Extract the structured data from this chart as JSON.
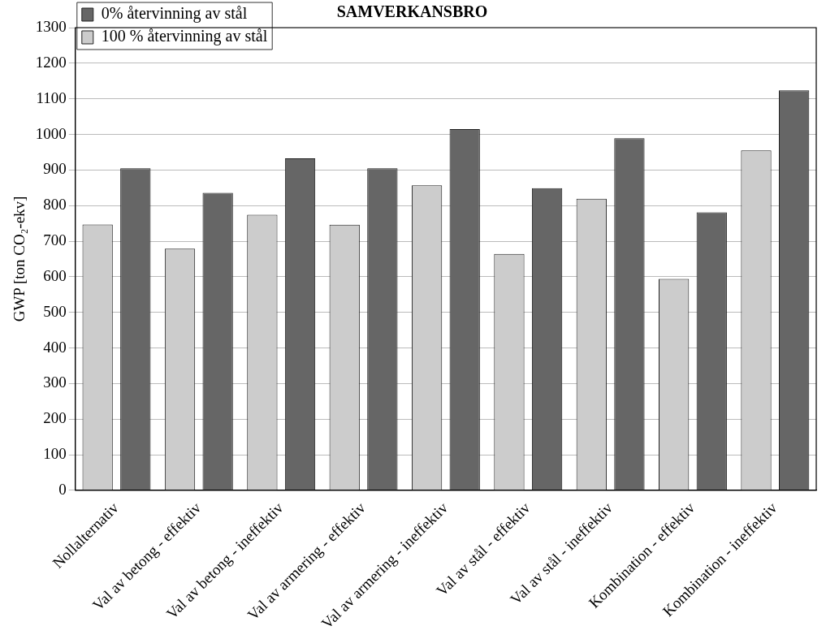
{
  "chart_data": {
    "type": "bar",
    "title": "SAMVERKANSBRO",
    "ylabel": "GWP [ton CO₂-ekv]",
    "categories": [
      "Nollalternativ",
      "Val av betong - effektiv",
      "Val av betong - ineffektiv",
      "Val av armering - effektiv",
      "Val av armering - ineffektiv",
      "Val av stål - effektiv",
      "Val av stål - ineffektiv",
      "Kombination - effektiv",
      "Kombination - ineffektiv"
    ],
    "series": [
      {
        "name": "100 % återvinning av stål",
        "color": "#cccccc",
        "values": [
          747,
          679,
          774,
          746,
          857,
          664,
          819,
          594,
          955
        ]
      },
      {
        "name": "0% återvinning av stål",
        "color": "#666666",
        "values": [
          905,
          836,
          933,
          905,
          1015,
          849,
          989,
          781,
          1124
        ]
      }
    ],
    "ylim": [
      0,
      1300
    ],
    "yticks": [
      0,
      100,
      200,
      300,
      400,
      500,
      600,
      700,
      800,
      900,
      1000,
      1100,
      1200,
      1300
    ],
    "grid": "y",
    "legend": "top left"
  }
}
